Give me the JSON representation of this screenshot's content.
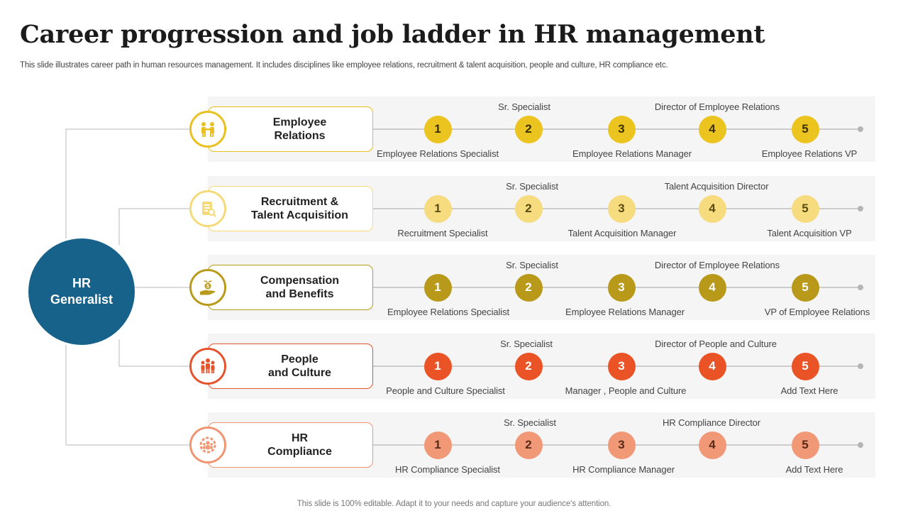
{
  "title": "Career progression and job ladder in HR management",
  "subtitle": "This slide illustrates career path in human resources management. It includes disciplines like employee relations, recruitment & talent acquisition, people and culture, HR compliance etc.",
  "footer": "This slide is 100% editable. Adapt it to your needs and capture your audience's attention.",
  "hub": {
    "label": "HR\nGeneralist",
    "color": "#17628a"
  },
  "tracks": [
    {
      "label": "Employee\nRelations",
      "color": "#e9c01f",
      "step_color": "#ebc41f",
      "step_text": "#3a3000",
      "icon": "employee-relations-icon",
      "steps": [
        "1",
        "2",
        "3",
        "4",
        "5"
      ],
      "above": [
        "Sr. Specialist",
        "Director of Employee Relations"
      ],
      "below": [
        "Employee Relations Specialist",
        "Employee Relations Manager",
        "Employee Relations VP"
      ]
    },
    {
      "label": "Recruitment &\nTalent Acquisition",
      "color": "#f5da7a",
      "step_color": "#f6dc7f",
      "step_text": "#5a4b10",
      "icon": "recruitment-document-icon",
      "steps": [
        "1",
        "2",
        "3",
        "4",
        "5"
      ],
      "above": [
        "Sr. Specialist",
        "Talent Acquisition Director"
      ],
      "below": [
        "Recruitment Specialist",
        "Talent Acquisition Manager",
        "Talent Acquisition VP"
      ]
    },
    {
      "label": "Compensation\nand Benefits",
      "color": "#b99a1a",
      "step_color": "#b89919",
      "step_text": "#ffffff",
      "icon": "money-plant-hand-icon",
      "steps": [
        "1",
        "2",
        "3",
        "4",
        "5"
      ],
      "above": [
        "Sr. Specialist",
        "Director of Employee Relations"
      ],
      "below": [
        "Employee Relations Specialist",
        "Employee Relations Manager",
        "VP of Employee Relations"
      ]
    },
    {
      "label": "People\nand Culture",
      "color": "#e4532a",
      "step_color": "#e95326",
      "step_text": "#ffffff",
      "icon": "people-group-icon",
      "steps": [
        "1",
        "2",
        "3",
        "4",
        "5"
      ],
      "above": [
        "Sr. Specialist",
        "Director of People and Culture"
      ],
      "below": [
        "People and Culture Specialist",
        "Manager , People and Culture",
        "Add Text Here"
      ]
    },
    {
      "label": "HR\nCompliance",
      "color": "#f09572",
      "step_color": "#f19877",
      "step_text": "#5a2a18",
      "icon": "team-gear-icon",
      "steps": [
        "1",
        "2",
        "3",
        "4",
        "5"
      ],
      "above": [
        "Sr. Specialist",
        "HR Compliance Director"
      ],
      "below": [
        "HR Compliance Specialist",
        "HR Compliance Manager",
        "Add Text Here"
      ]
    }
  ]
}
